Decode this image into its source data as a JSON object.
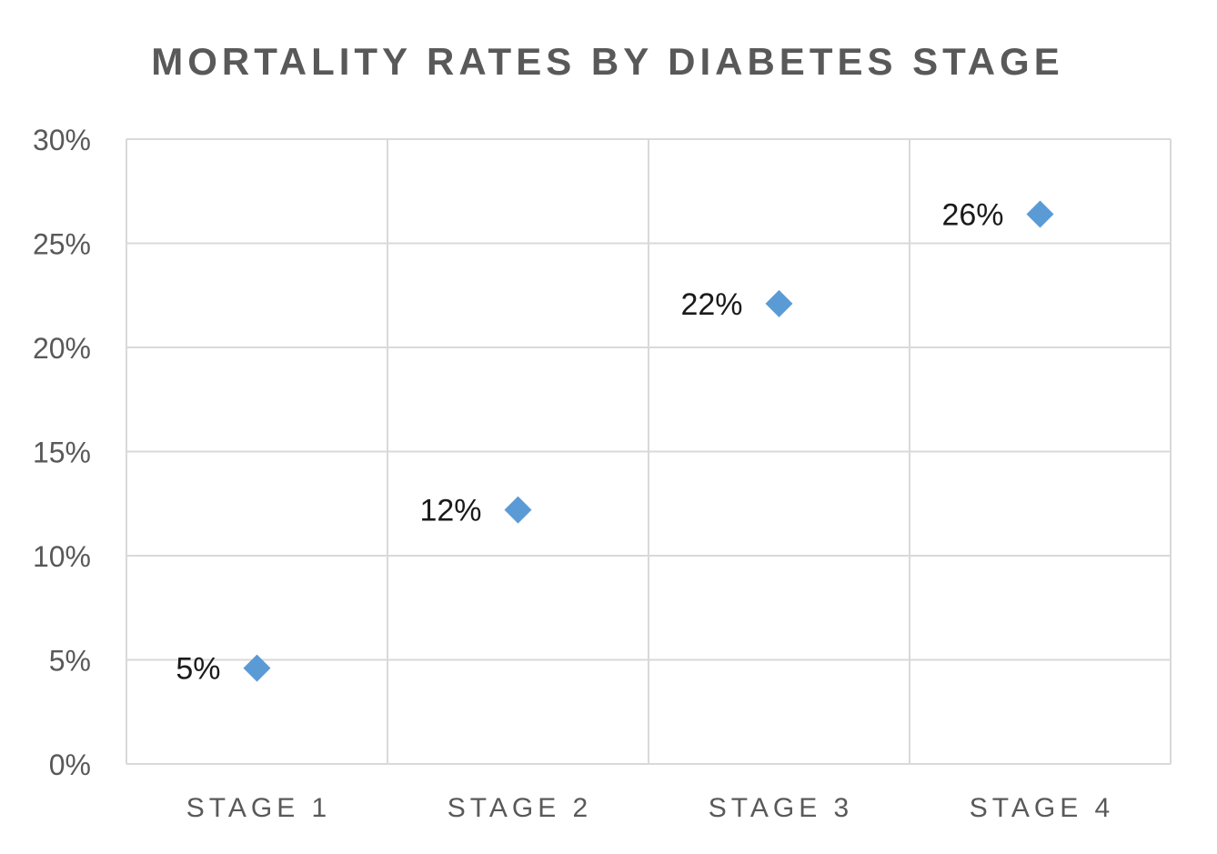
{
  "chart_data": {
    "type": "scatter",
    "title": "MORTALITY RATES BY DIABETES STAGE",
    "categories": [
      "STAGE 1",
      "STAGE 2",
      "STAGE 3",
      "STAGE 4"
    ],
    "values": [
      4.6,
      12.2,
      22.1,
      26.4
    ],
    "data_labels": [
      "5%",
      "12%",
      "22%",
      "26%"
    ],
    "yticks": [
      {
        "value": 0,
        "label": "0%"
      },
      {
        "value": 5,
        "label": "5%"
      },
      {
        "value": 10,
        "label": "10%"
      },
      {
        "value": 15,
        "label": "15%"
      },
      {
        "value": 20,
        "label": "20%"
      },
      {
        "value": 25,
        "label": "25%"
      },
      {
        "value": 30,
        "label": "30%"
      }
    ],
    "ylim": [
      0,
      30
    ],
    "grid": true,
    "legend": "none",
    "marker": "diamond",
    "colors": {
      "marker": "#5B9BD5",
      "grid": "#D9D9D9",
      "text": "#595959",
      "label": "#1A1A1A"
    }
  }
}
